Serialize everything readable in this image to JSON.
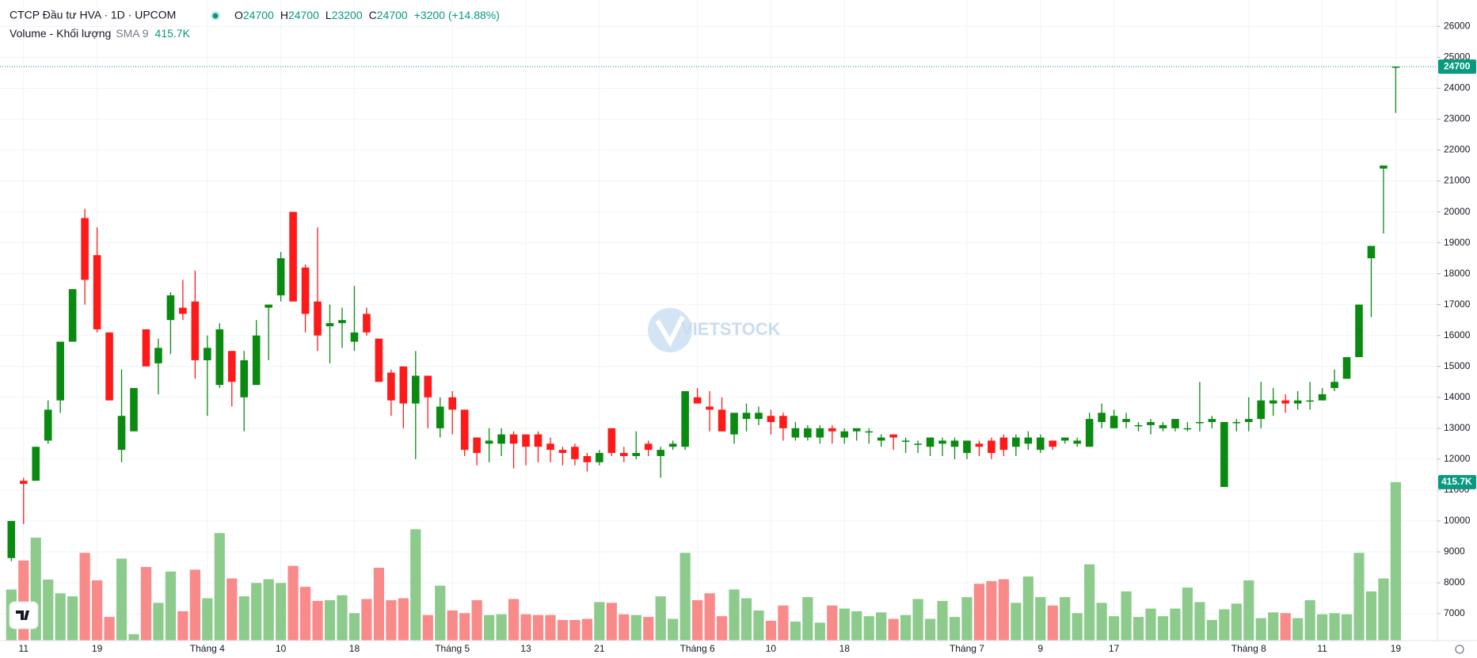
{
  "chart_data": {
    "type": "candlestick",
    "title": "CTCP Đầu tư HVA · 1D · UPCOM",
    "ohlc": [
      {
        "label": "O",
        "value": 24700
      },
      {
        "label": "H",
        "value": 24700
      },
      {
        "label": "L",
        "value": 23200
      },
      {
        "label": "C",
        "value": 24700
      }
    ],
    "change": "+3200 (+14.88%)",
    "volume_title": "Volume - Khối lượng",
    "volume_sma": "SMA 9",
    "watermark": "VIETSTOCK",
    "categories": [
      null,
      "11",
      null,
      null,
      null,
      null,
      null,
      "19",
      null,
      null,
      null,
      null,
      null,
      null,
      null,
      null,
      "Tháng 4",
      null,
      null,
      null,
      null,
      null,
      "10",
      null,
      null,
      null,
      null,
      null,
      "18",
      null,
      null,
      null,
      null,
      null,
      null,
      null,
      "Tháng 5",
      null,
      null,
      null,
      null,
      null,
      "13",
      null,
      null,
      null,
      null,
      null,
      "21",
      null,
      null,
      null,
      null,
      null,
      null,
      null,
      "Tháng 6",
      null,
      null,
      null,
      null,
      null,
      "10",
      null,
      null,
      null,
      null,
      null,
      "18",
      null,
      null,
      null,
      null,
      null,
      null,
      null,
      null,
      null,
      "Tháng 7",
      null,
      null,
      null,
      null,
      null,
      "9",
      null,
      null,
      null,
      null,
      null,
      "17",
      null,
      null,
      null,
      null,
      null,
      null,
      null,
      null,
      null,
      null,
      "Tháng 8",
      null,
      null,
      null,
      null,
      null,
      "11",
      null,
      null,
      null,
      null,
      null,
      "19"
    ],
    "candles": {
      "open": [
        8800,
        11300,
        11300,
        12600,
        13900,
        15800,
        19800,
        18600,
        16100,
        12300,
        12900,
        16200,
        15100,
        16500,
        16900,
        17100,
        15200,
        14400,
        15500,
        14000,
        14400,
        16900,
        17300,
        20000,
        18200,
        17100,
        16300,
        16400,
        15800,
        16700,
        15900,
        14800,
        15000,
        13800,
        14700,
        13000,
        14000,
        13600,
        12700,
        12500,
        12500,
        12800,
        12800,
        12800,
        12500,
        12300,
        12400,
        12100,
        11900,
        13000,
        12200,
        12100,
        12500,
        12100,
        12400,
        12400,
        14000,
        13700,
        13600,
        12800,
        13300,
        13300,
        13400,
        13400,
        12700,
        12700,
        12700,
        13000,
        12700,
        12900,
        12900,
        12600,
        12800,
        12600,
        12500,
        12400,
        12500,
        12400,
        12200,
        12500,
        12600,
        12700,
        12400,
        12500,
        12300,
        12600,
        12600,
        12500,
        12400,
        13200,
        13000,
        13200,
        13100,
        13100,
        13000,
        13000,
        13000,
        13200,
        13200,
        11100,
        13200,
        13200,
        13300,
        13800,
        13900,
        13800,
        13900,
        13900,
        14300,
        14600,
        15300,
        18500,
        21400,
        24700
      ],
      "high": [
        10000,
        11400,
        12400,
        13900,
        15800,
        17500,
        20100,
        19500,
        16100,
        14900,
        14300,
        16200,
        15900,
        17400,
        17800,
        18100,
        16000,
        16400,
        15500,
        15500,
        16500,
        17000,
        18700,
        20000,
        18300,
        19500,
        17000,
        16900,
        17600,
        16900,
        15900,
        14900,
        15000,
        15500,
        14700,
        14000,
        14200,
        13600,
        12700,
        13000,
        13000,
        12900,
        12800,
        12900,
        12700,
        12400,
        12500,
        12200,
        12300,
        13000,
        12400,
        12900,
        12600,
        12400,
        12600,
        14200,
        14300,
        14200,
        14000,
        13500,
        13800,
        13700,
        13600,
        13500,
        13200,
        13100,
        13100,
        13100,
        13000,
        13000,
        13000,
        12800,
        12800,
        12700,
        12600,
        12700,
        12700,
        12700,
        12600,
        12600,
        12700,
        12800,
        12800,
        12900,
        12800,
        12600,
        12700,
        12700,
        13500,
        13800,
        13600,
        13500,
        13200,
        13300,
        13200,
        13300,
        13200,
        14500,
        13400,
        13200,
        13300,
        14000,
        14500,
        14300,
        14100,
        14200,
        14500,
        14300,
        14900,
        15300,
        17000,
        18900,
        21500,
        24700
      ],
      "low": [
        8700,
        9900,
        11300,
        12500,
        13500,
        15800,
        17000,
        16100,
        13900,
        11900,
        12900,
        15000,
        14100,
        15400,
        16500,
        14600,
        13400,
        14300,
        13700,
        12900,
        14400,
        15200,
        17100,
        17100,
        16100,
        15500,
        15100,
        15600,
        15500,
        16000,
        14500,
        13400,
        13000,
        12000,
        13000,
        12700,
        12800,
        12100,
        11800,
        11900,
        12100,
        11700,
        11800,
        11900,
        11900,
        11800,
        11800,
        11600,
        11800,
        12100,
        11900,
        12000,
        12100,
        11400,
        12300,
        12300,
        13800,
        12900,
        12900,
        12500,
        12900,
        13100,
        12800,
        12600,
        12600,
        12600,
        12500,
        12500,
        12500,
        12600,
        12500,
        12400,
        12300,
        12200,
        12200,
        12100,
        12100,
        12000,
        12000,
        12100,
        12000,
        12100,
        12100,
        12300,
        12200,
        12300,
        12500,
        12400,
        12400,
        13000,
        13000,
        13000,
        12900,
        12800,
        12900,
        12900,
        12900,
        12900,
        13000,
        11100,
        12900,
        12900,
        13000,
        13400,
        13500,
        13600,
        13600,
        13900,
        14200,
        14600,
        15300,
        16600,
        19300,
        23200
      ],
      "close": [
        10000,
        11200,
        12400,
        13600,
        15800,
        17500,
        17800,
        16200,
        13900,
        13400,
        14300,
        15000,
        15600,
        17300,
        16700,
        15200,
        15600,
        16200,
        14500,
        15200,
        16000,
        17000,
        18500,
        17100,
        16700,
        16000,
        16400,
        16500,
        16100,
        16100,
        14500,
        13900,
        13800,
        14700,
        14000,
        13700,
        13600,
        12300,
        12200,
        12600,
        12800,
        12500,
        12400,
        12400,
        12300,
        12200,
        12000,
        11900,
        12200,
        12200,
        12100,
        12200,
        12300,
        12300,
        12500,
        14200,
        13800,
        13600,
        12900,
        13500,
        13500,
        13500,
        13200,
        13000,
        13000,
        13000,
        13000,
        12900,
        12900,
        13000,
        12900,
        12700,
        12700,
        12600,
        12500,
        12700,
        12600,
        12600,
        12600,
        12400,
        12200,
        12300,
        12700,
        12700,
        12700,
        12400,
        12700,
        12600,
        13300,
        13500,
        13400,
        13300,
        13100,
        13200,
        13100,
        13300,
        13000,
        13200,
        13300,
        13200,
        13200,
        13300,
        13900,
        13900,
        13800,
        13900,
        13900,
        14100,
        14500,
        15300,
        17000,
        18900,
        21500,
        24700
      ],
      "up_color": "#0b8a12",
      "down_color": "#ff1a1a"
    },
    "volume": {
      "values": [
        134,
        210,
        270,
        160,
        124,
        116,
        230,
        158,
        62,
        215,
        17,
        193,
        99,
        181,
        77,
        186,
        111,
        282,
        163,
        116,
        151,
        161,
        151,
        196,
        141,
        104,
        106,
        119,
        72,
        109,
        191,
        106,
        111,
        292,
        67,
        144,
        79,
        72,
        106,
        67,
        69,
        109,
        69,
        67,
        67,
        54,
        54,
        57,
        101,
        99,
        69,
        67,
        62,
        116,
        57,
        230,
        106,
        124,
        64,
        134,
        111,
        79,
        52,
        92,
        50,
        114,
        47,
        92,
        84,
        77,
        64,
        74,
        57,
        67,
        109,
        57,
        104,
        62,
        114,
        149,
        156,
        161,
        99,
        168,
        114,
        92,
        114,
        72,
        200,
        99,
        64,
        129,
        62,
        84,
        64,
        84,
        139,
        101,
        54,
        82,
        97,
        158,
        59,
        74,
        72,
        59,
        106,
        69,
        72,
        69,
        230,
        129,
        163,
        415.7
      ],
      "last_label": "415.7K",
      "lim": [
        0,
        1680
      ],
      "up_color": "#8ccb8c",
      "down_color": "#f98a8a"
    },
    "ylim": [
      6130,
      26855
    ],
    "yticks": [
      7000,
      8000,
      9000,
      10000,
      11000,
      12000,
      13000,
      14000,
      15000,
      16000,
      17000,
      18000,
      19000,
      20000,
      21000,
      22000,
      23000,
      24000,
      25000,
      26000
    ],
    "grid": true
  }
}
